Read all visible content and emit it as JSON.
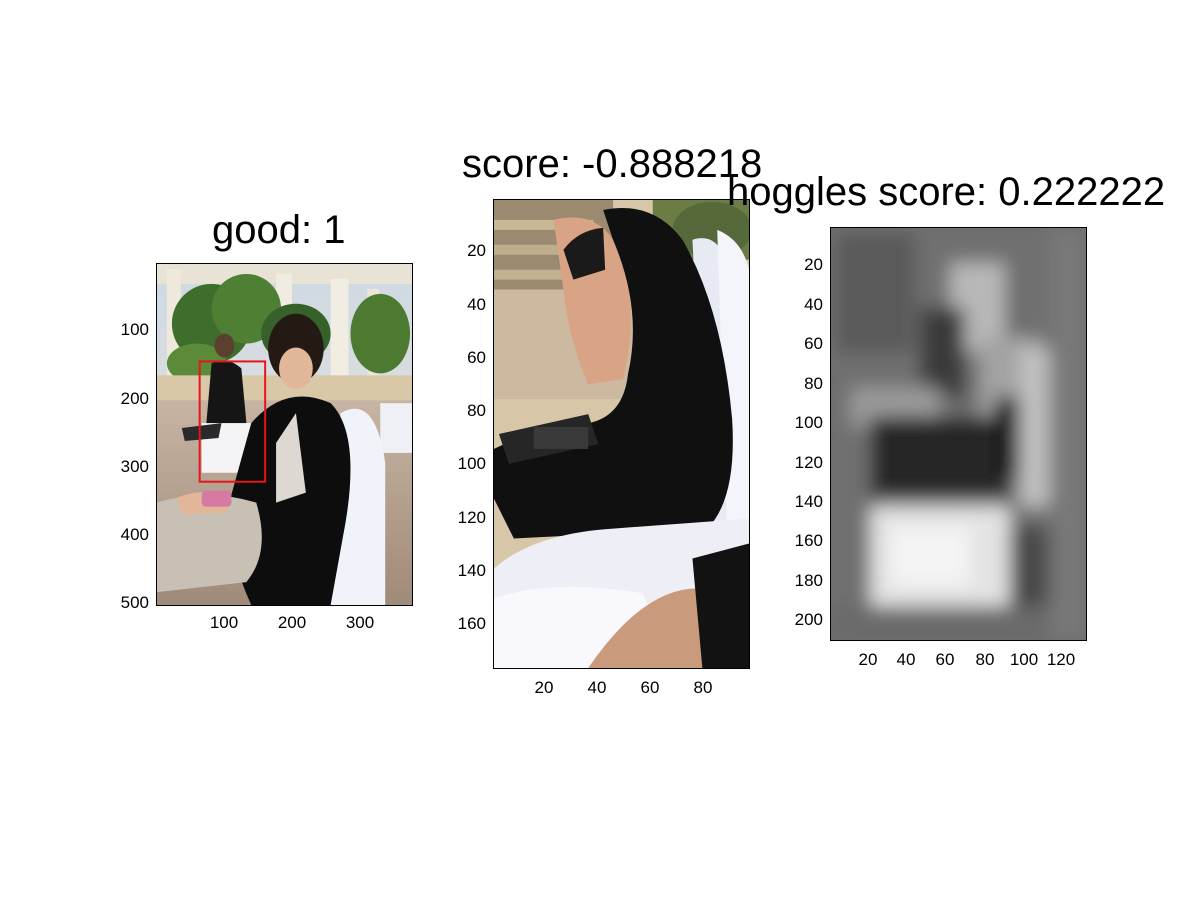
{
  "panels": [
    {
      "title": "good: 1",
      "content": "photo of a seated woman in black with a red bounding box around a second seated woman",
      "y_ticks": [
        "100",
        "200",
        "300",
        "400",
        "500"
      ],
      "x_ticks": [
        "100",
        "200",
        "300"
      ],
      "box_color": "#e8141b"
    },
    {
      "title": "score: -0.888218",
      "content": "cropped detection: woman in black dress seated on white chair cover",
      "y_ticks": [
        "20",
        "40",
        "60",
        "80",
        "100",
        "120",
        "140",
        "160"
      ],
      "x_ticks": [
        "20",
        "40",
        "60",
        "80"
      ]
    },
    {
      "title": "hoggles score: 0.222222",
      "content": "blurry grayscale HOG-inversion visualization",
      "y_ticks": [
        "20",
        "40",
        "60",
        "80",
        "100",
        "120",
        "140",
        "160",
        "180",
        "200"
      ],
      "x_ticks": [
        "20",
        "40",
        "60",
        "80",
        "100",
        "120"
      ]
    }
  ]
}
